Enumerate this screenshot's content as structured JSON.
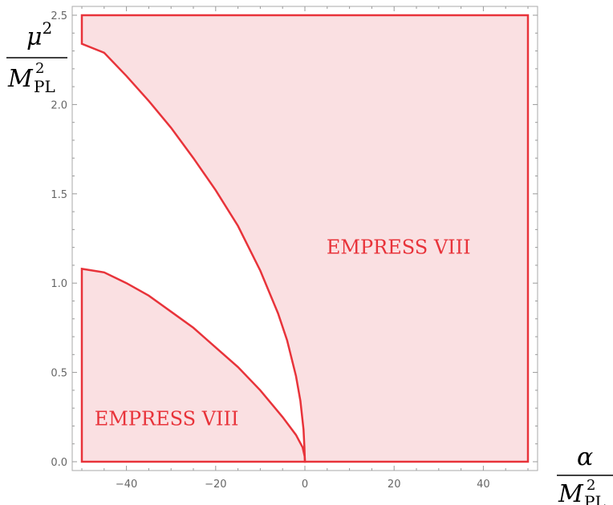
{
  "chart_data": {
    "type": "area",
    "xlim": [
      -50,
      50
    ],
    "ylim": [
      0,
      2.5
    ],
    "x_ticks": [
      {
        "value": -40,
        "label": "−40"
      },
      {
        "value": -20,
        "label": "−20"
      },
      {
        "value": 0,
        "label": "0"
      },
      {
        "value": 20,
        "label": "20"
      },
      {
        "value": 40,
        "label": "40"
      }
    ],
    "y_ticks": [
      {
        "value": 0.0,
        "label": "0.0"
      },
      {
        "value": 0.5,
        "label": "0.5"
      },
      {
        "value": 1.0,
        "label": "1.0"
      },
      {
        "value": 1.5,
        "label": "1.5"
      },
      {
        "value": 2.0,
        "label": "2.0"
      },
      {
        "value": 2.5,
        "label": "2.5"
      }
    ],
    "grid": false,
    "colors": {
      "boundary": "#e8333a",
      "fill": "#fae0e2",
      "frame": "#aaaaaa",
      "tick_text": "#666666"
    },
    "regions": [
      {
        "label": "EMPRESS VIII",
        "label_position": [
          21,
          1.2
        ],
        "boundary": [
          [
            -50,
            2.5
          ],
          [
            50,
            2.5
          ],
          [
            50,
            0
          ],
          [
            0,
            0
          ],
          [
            -0.1,
            0.08
          ],
          [
            -0.3,
            0.18
          ],
          [
            -1,
            0.34
          ],
          [
            -2,
            0.48
          ],
          [
            -4,
            0.68
          ],
          [
            -6,
            0.83
          ],
          [
            -10,
            1.07
          ],
          [
            -15,
            1.32
          ],
          [
            -20,
            1.52
          ],
          [
            -25,
            1.7
          ],
          [
            -30,
            1.87
          ],
          [
            -35,
            2.02
          ],
          [
            -40,
            2.16
          ],
          [
            -45,
            2.29
          ],
          [
            -50,
            2.34
          ],
          [
            -50,
            2.5
          ]
        ]
      },
      {
        "label": "EMPRESS VIII",
        "label_position": [
          -31,
          0.24
        ],
        "boundary": [
          [
            -50,
            0
          ],
          [
            0,
            0
          ],
          [
            -0.05,
            0.03
          ],
          [
            -0.5,
            0.08
          ],
          [
            -2,
            0.15
          ],
          [
            -5,
            0.25
          ],
          [
            -10,
            0.4
          ],
          [
            -15,
            0.53
          ],
          [
            -20,
            0.64
          ],
          [
            -25,
            0.75
          ],
          [
            -30,
            0.84
          ],
          [
            -35,
            0.93
          ],
          [
            -40,
            1.0
          ],
          [
            -45,
            1.06
          ],
          [
            -50,
            1.08
          ],
          [
            -50,
            0
          ]
        ]
      }
    ],
    "axis_labels": {
      "x": {
        "numerator": "α",
        "denominator_symbol": "M",
        "denominator_sup": "2",
        "denominator_sub": "PL"
      },
      "y": {
        "numerator_symbol": "μ",
        "numerator_sup": "2",
        "denominator_symbol": "M",
        "denominator_sup": "2",
        "denominator_sub": "PL"
      }
    }
  }
}
